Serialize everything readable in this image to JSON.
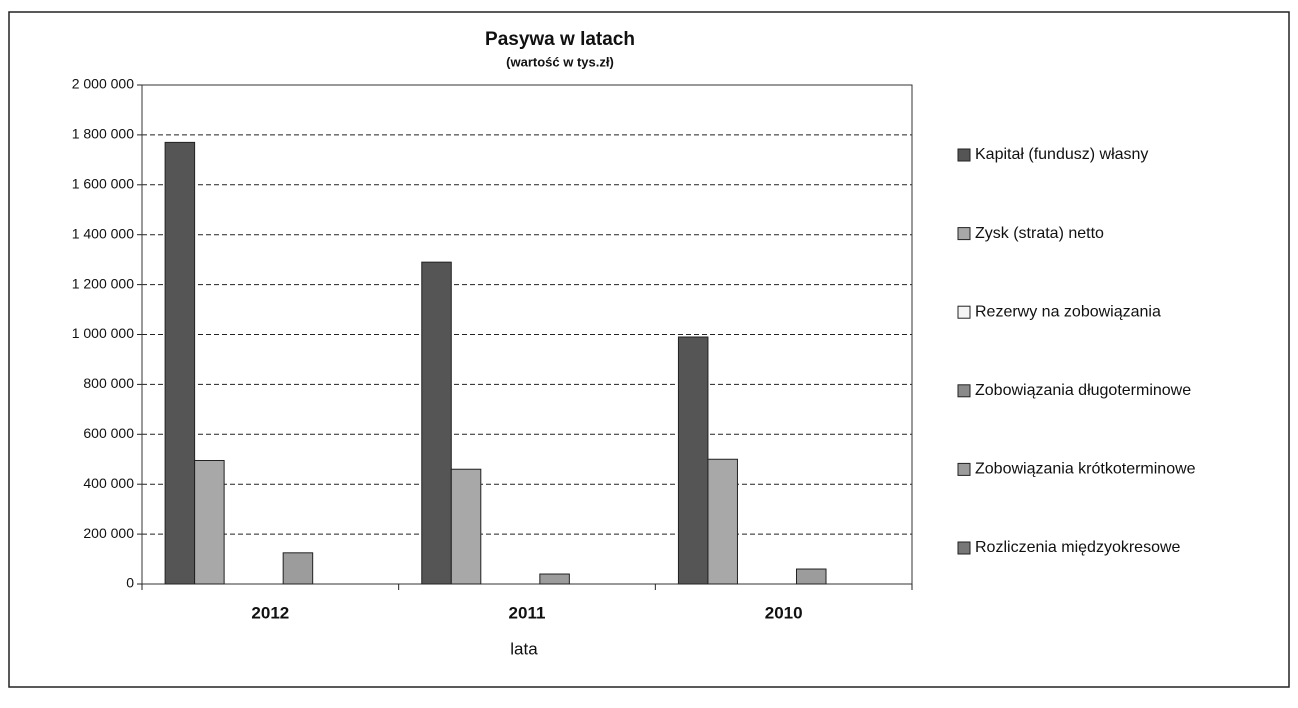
{
  "chart_data": {
    "type": "bar",
    "title": "Pasywa w latach",
    "subtitle": "(wartość w tys.zł)",
    "x_label": "lata",
    "categories": [
      "2012",
      "2011",
      "2010"
    ],
    "series": [
      {
        "name": "Kapitał (fundusz) własny",
        "color": "#555555",
        "values": [
          1770000,
          1290000,
          990000
        ]
      },
      {
        "name": "Zysk (strata) netto",
        "color": "#a8a8a8",
        "values": [
          495000,
          460000,
          500000
        ]
      },
      {
        "name": "Rezerwy na zobowiązania",
        "color": "#f4f4f4",
        "values": [
          0,
          0,
          0
        ]
      },
      {
        "name": "Zobowiązania długoterminowe",
        "color": "#8a8a8a",
        "values": [
          0,
          0,
          0
        ]
      },
      {
        "name": "Zobowiązania krótkoterminowe",
        "color": "#9c9c9c",
        "values": [
          125000,
          40000,
          60000
        ]
      },
      {
        "name": "Rozliczenia międzyokresowe",
        "color": "#777777",
        "values": [
          0,
          0,
          0
        ]
      }
    ],
    "ylim": [
      0,
      2000000
    ],
    "yticks": [
      0,
      {
        "value": 200000,
        "label": "200 000"
      },
      {
        "value": 400000,
        "label": "400 000"
      },
      {
        "value": 600000,
        "label": "600 000"
      },
      {
        "value": 800000,
        "label": "800 000"
      },
      {
        "value": 1000000,
        "label": "1 000 000"
      },
      {
        "value": 1200000,
        "label": "1 200 000"
      },
      {
        "value": 1400000,
        "label": "1 400 000"
      },
      {
        "value": 1600000,
        "label": "1 600 000"
      },
      {
        "value": 1800000,
        "label": "1 800 000"
      },
      {
        "value": 2000000,
        "label": "2 000 000"
      }
    ],
    "grid": true,
    "legend": "right"
  }
}
